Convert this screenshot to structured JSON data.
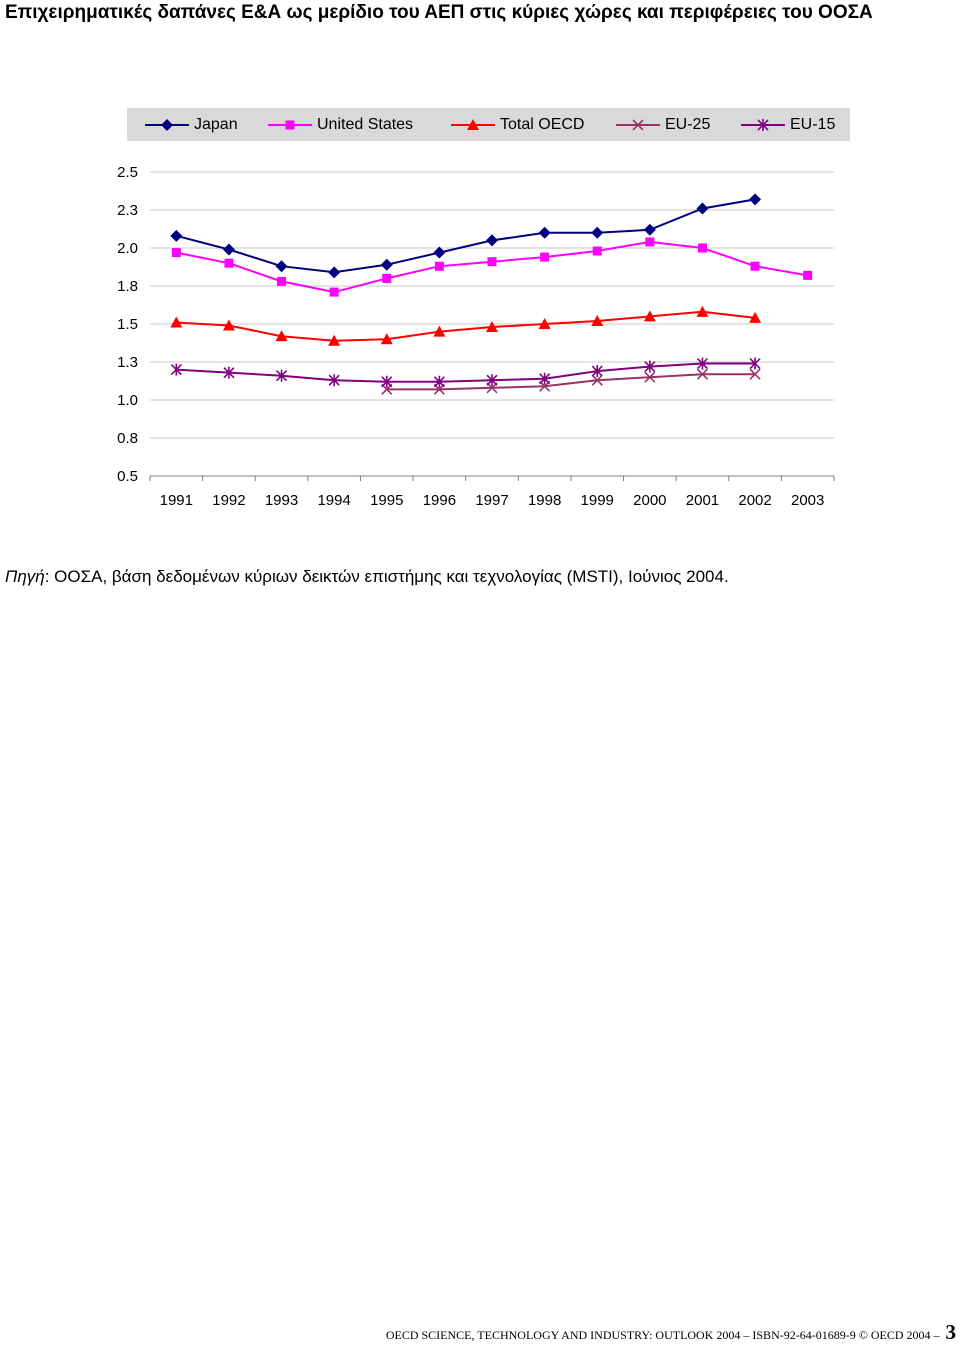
{
  "chart_data": {
    "type": "line",
    "title": "Επιχειρηματικές δαπάνες Ε&Α ως μερίδιο του ΑΕΠ στις κύριες χώρες και περιφέρειες του ΟΟΣΑ",
    "x": [
      "1991",
      "1992",
      "1993",
      "1994",
      "1995",
      "1996",
      "1997",
      "1998",
      "1999",
      "2000",
      "2001",
      "2002",
      "2003"
    ],
    "ylim": [
      0.5,
      2.5
    ],
    "yticks": [
      0.5,
      0.75,
      1.0,
      1.25,
      1.5,
      1.75,
      2.0,
      2.25,
      2.5
    ],
    "ytick_labels": [
      "0.5",
      "0.8",
      "1.0",
      "1.3",
      "1.5",
      "1.8",
      "2.0",
      "2.3",
      "2.5"
    ],
    "grid": true,
    "legend_position": "top",
    "series": [
      {
        "name": "Japan",
        "color": "#000080",
        "marker": "diamond",
        "values": [
          2.08,
          1.99,
          1.88,
          1.84,
          1.89,
          1.97,
          2.05,
          2.1,
          2.1,
          2.12,
          2.26,
          2.32,
          null
        ]
      },
      {
        "name": "United States",
        "color": "#ff00ff",
        "marker": "square",
        "values": [
          1.97,
          1.9,
          1.78,
          1.71,
          1.8,
          1.88,
          1.91,
          1.94,
          1.98,
          2.04,
          2.0,
          1.88,
          1.82
        ]
      },
      {
        "name": "Total OECD",
        "color": "#ff0000",
        "marker": "triangle",
        "values": [
          1.51,
          1.49,
          1.42,
          1.39,
          1.4,
          1.45,
          1.48,
          1.5,
          1.52,
          1.55,
          1.58,
          1.54,
          null
        ]
      },
      {
        "name": "EU-25",
        "color": "#993366",
        "marker": "x",
        "values": [
          null,
          null,
          null,
          null,
          1.07,
          1.07,
          1.08,
          1.09,
          1.13,
          1.15,
          1.17,
          1.17,
          null
        ]
      },
      {
        "name": "EU-15",
        "color": "#800080",
        "marker": "asterisk",
        "values": [
          1.2,
          1.18,
          1.16,
          1.13,
          1.12,
          1.12,
          1.13,
          1.14,
          1.19,
          1.22,
          1.24,
          1.24,
          null
        ]
      }
    ]
  },
  "source": {
    "label": "Πηγή",
    "text": ": ΟΟΣΑ, βάση δεδομένων κύριων δεικτών επιστήμης και τεχνολογίας (MSTI), Ιούνιος 2004."
  },
  "footer": {
    "text": "OECD SCIENCE, TECHNOLOGY AND INDUSTRY: OUTLOOK 2004 – ISBN-92-64-01689-9 © OECD 2004 –",
    "page": "3"
  }
}
